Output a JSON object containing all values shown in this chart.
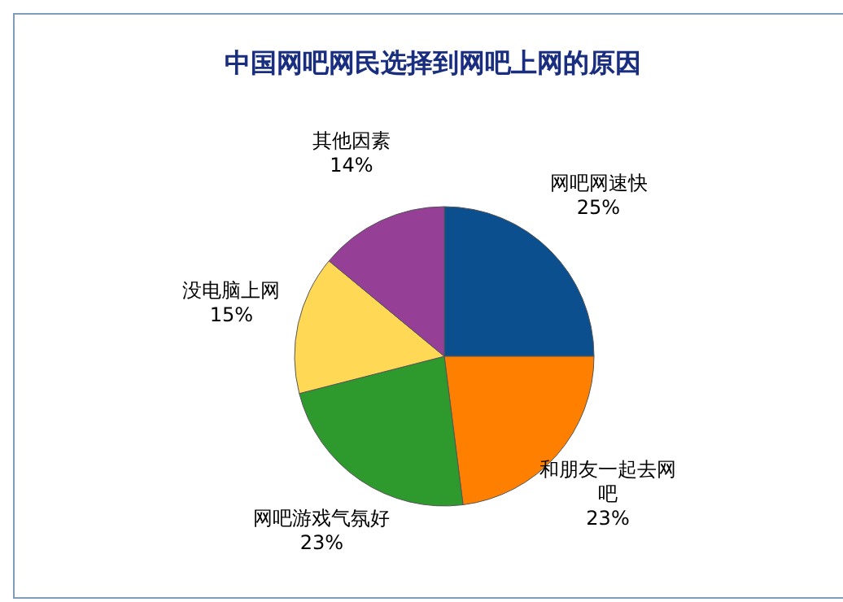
{
  "chart_data": {
    "type": "pie",
    "title": "中国网吧网民选择到网吧上网的原因",
    "categories": [
      "网吧网速快",
      "和朋友一起去网吧",
      "网吧游戏气氛好",
      "没电脑上网",
      "其他因素"
    ],
    "values": [
      25,
      23,
      23,
      15,
      14
    ],
    "value_labels": [
      "25%",
      "23%",
      "23%",
      "15%",
      "14%"
    ],
    "colors": [
      "#0b4f8f",
      "#ff8000",
      "#2e9a2e",
      "#ffd955",
      "#953f97"
    ],
    "legend": false
  }
}
